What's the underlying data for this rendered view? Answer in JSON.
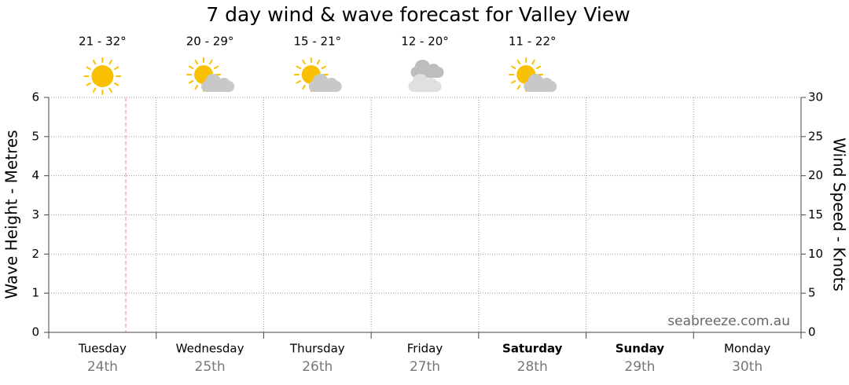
{
  "chart_data": {
    "type": "line",
    "title": "7 day wind & wave forecast for Valley View",
    "categories": [
      "Tuesday",
      "Wednesday",
      "Thursday",
      "Friday",
      "Saturday",
      "Sunday",
      "Monday"
    ],
    "dates": [
      "24th",
      "25th",
      "26th",
      "27th",
      "28th",
      "29th",
      "30th"
    ],
    "bold": [
      false,
      false,
      false,
      false,
      true,
      true,
      false
    ],
    "temperatures": [
      "21 - 32°",
      "20 - 29°",
      "15 - 21°",
      "12 - 20°",
      "11 - 22°"
    ],
    "weather": [
      "sunny",
      "partly-cloudy",
      "partly-cloudy",
      "cloudy",
      "partly-cloudy"
    ],
    "y_label": "Wave Height - Metres",
    "y2_label": "Wind Speed - Knots",
    "watermark": "seabreeze.com.au",
    "ylim": [
      0,
      6
    ],
    "yticks": [
      0,
      1,
      2,
      3,
      4,
      5,
      6
    ],
    "y2lim": [
      0,
      30
    ],
    "y2ticks": [
      0,
      5,
      10,
      15,
      20,
      25,
      30
    ],
    "grid": true,
    "series": []
  }
}
